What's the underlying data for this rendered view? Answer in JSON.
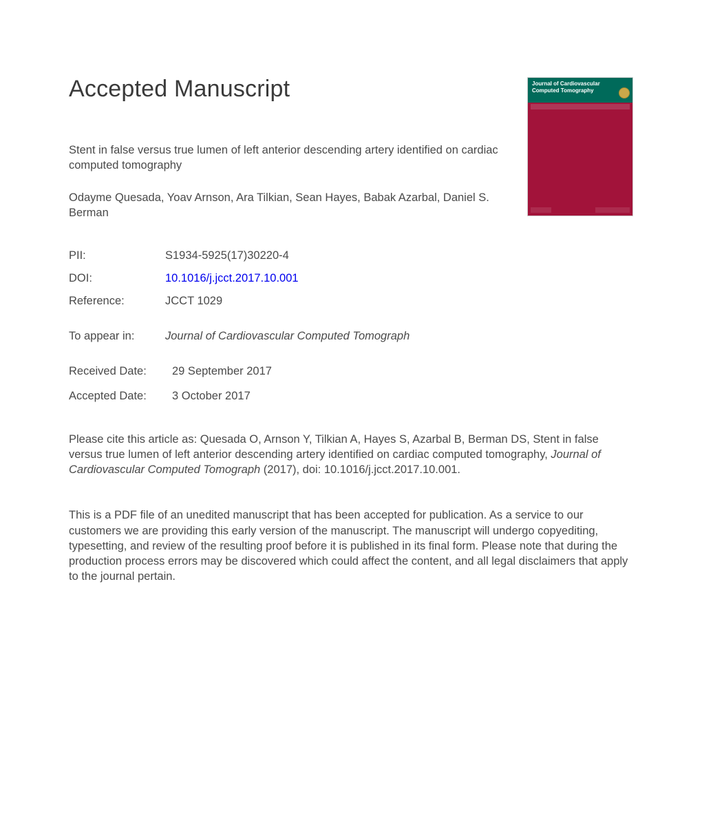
{
  "heading": "Accepted Manuscript",
  "article": {
    "title": "Stent in false versus true lumen of left anterior descending artery identified on cardiac computed tomography",
    "authors": "Odayme Quesada, Yoav Arnson, Ara Tilkian, Sean Hayes, Babak Azarbal, Daniel S. Berman"
  },
  "metadata": {
    "pii": {
      "label": "PII:",
      "value": "S1934-5925(17)30220-4"
    },
    "doi": {
      "label": "DOI:",
      "value": "10.1016/j.jcct.2017.10.001"
    },
    "reference": {
      "label": "Reference:",
      "value": "JCCT 1029"
    },
    "to_appear": {
      "label": "To appear in:",
      "value": "Journal of Cardiovascular Computed Tomograph"
    },
    "received": {
      "label": "Received Date:",
      "value": "29 September 2017"
    },
    "accepted": {
      "label": "Accepted Date:",
      "value": "3 October 2017"
    }
  },
  "citation": {
    "prefix": "Please cite this article as: Quesada O, Arnson Y, Tilkian A, Hayes S, Azarbal B, Berman DS, Stent in false versus true lumen of left anterior descending artery identified on cardiac computed tomography, ",
    "journal": "Journal of Cardiovascular Computed Tomograph",
    "suffix": " (2017), doi: 10.1016/j.jcct.2017.10.001."
  },
  "disclaimer": "This is a PDF file of an unedited manuscript that has been accepted for publication. As a service to our customers we are providing this early version of the manuscript. The manuscript will undergo copyediting, typesetting, and review of the resulting proof before it is published in its final form. Please note that during the production process errors may be discovered which could affect the content, and all legal disclaimers that apply to the journal pertain.",
  "cover": {
    "journal_line1": "Journal of Cardiovascular",
    "journal_line2": "Computed Tomography",
    "header_bg": "#006a5a",
    "body_bg": "#a2133a",
    "border": "#cccccc"
  },
  "style": {
    "text_color": "#4a4a4a",
    "link_color": "#0000ee",
    "heading_fontsize": 34,
    "body_fontsize": 16.5,
    "page_bg": "#ffffff"
  }
}
